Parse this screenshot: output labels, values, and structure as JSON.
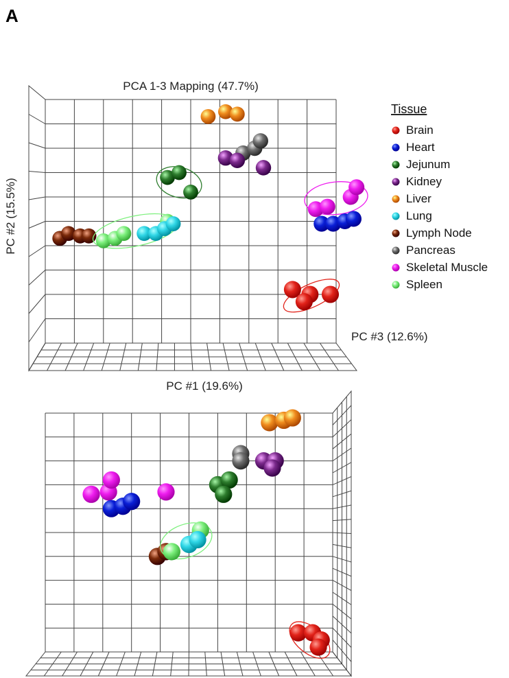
{
  "panel_label": "A",
  "legend": {
    "title": "Tissue",
    "items": [
      {
        "label": "Brain",
        "color": "#e2231a"
      },
      {
        "label": "Heart",
        "color": "#0a1fd6"
      },
      {
        "label": "Jejunum",
        "color": "#2e7d2e"
      },
      {
        "label": "Kidney",
        "color": "#7b2a8c"
      },
      {
        "label": "Liver",
        "color": "#f08c1e"
      },
      {
        "label": "Lung",
        "color": "#30d6e6"
      },
      {
        "label": "Lymph Node",
        "color": "#7a2a0a"
      },
      {
        "label": "Pancreas",
        "color": "#6e6e6e"
      },
      {
        "label": "Skeletal Muscle",
        "color": "#ee1cee"
      },
      {
        "label": "Spleen",
        "color": "#7df07d"
      }
    ]
  },
  "chart_data": [
    {
      "type": "scatter",
      "projection": "3d",
      "title": "PCA 1-3 Mapping (47.7%)",
      "xlabel": "PC #1 (19.6%)",
      "ylabel": "PC #2 (15.5%)",
      "zlabel": "PC #3 (12.6%)",
      "grid": true,
      "legend_position": "right",
      "series": [
        {
          "name": "Liver",
          "points": [
            [
              0.56,
              0.93,
              0.3
            ],
            [
              0.62,
              0.95,
              0.3
            ],
            [
              0.66,
              0.94,
              0.3
            ]
          ]
        },
        {
          "name": "Pancreas",
          "points": [
            [
              0.68,
              0.78,
              0.4
            ],
            [
              0.72,
              0.8,
              0.4
            ],
            [
              0.74,
              0.83,
              0.4
            ]
          ]
        },
        {
          "name": "Kidney",
          "points": [
            [
              0.62,
              0.76,
              0.4
            ],
            [
              0.66,
              0.75,
              0.4
            ],
            [
              0.75,
              0.72,
              0.4
            ]
          ]
        },
        {
          "name": "Jejunum",
          "points": [
            [
              0.42,
              0.68,
              0.3
            ],
            [
              0.46,
              0.7,
              0.3
            ],
            [
              0.5,
              0.62,
              0.3
            ]
          ]
        },
        {
          "name": "Skeletal Muscle",
          "points": [
            [
              0.93,
              0.55,
              0.5
            ],
            [
              0.97,
              0.56,
              0.5
            ],
            [
              1.05,
              0.6,
              0.5
            ],
            [
              1.07,
              0.64,
              0.5
            ]
          ]
        },
        {
          "name": "Heart",
          "points": [
            [
              0.95,
              0.49,
              0.5
            ],
            [
              0.99,
              0.49,
              0.5
            ],
            [
              1.03,
              0.5,
              0.5
            ],
            [
              1.06,
              0.51,
              0.5
            ]
          ]
        },
        {
          "name": "Lymph Node",
          "points": [
            [
              0.05,
              0.43,
              0.3
            ],
            [
              0.08,
              0.45,
              0.3
            ],
            [
              0.12,
              0.44,
              0.3
            ],
            [
              0.15,
              0.44,
              0.3
            ]
          ]
        },
        {
          "name": "Spleen",
          "points": [
            [
              0.2,
              0.42,
              0.3
            ],
            [
              0.24,
              0.43,
              0.3
            ],
            [
              0.27,
              0.45,
              0.3
            ],
            [
              0.42,
              0.5,
              0.3
            ]
          ]
        },
        {
          "name": "Lung",
          "points": [
            [
              0.34,
              0.45,
              0.3
            ],
            [
              0.38,
              0.45,
              0.3
            ],
            [
              0.41,
              0.47,
              0.3
            ],
            [
              0.44,
              0.49,
              0.3
            ]
          ]
        },
        {
          "name": "Brain",
          "points": [
            [
              0.85,
              0.22,
              0.8
            ],
            [
              0.91,
              0.2,
              0.8
            ],
            [
              0.89,
              0.17,
              0.8
            ],
            [
              0.98,
              0.2,
              0.8
            ]
          ]
        }
      ]
    },
    {
      "type": "scatter",
      "projection": "3d",
      "title": "",
      "grid": true,
      "series": [
        {
          "name": "Liver",
          "points": [
            [
              0.78,
              0.96,
              0.5
            ],
            [
              0.83,
              0.97,
              0.5
            ],
            [
              0.86,
              0.98,
              0.5
            ]
          ]
        },
        {
          "name": "Pancreas",
          "points": [
            [
              0.68,
              0.83,
              0.5
            ],
            [
              0.68,
              0.8,
              0.5
            ]
          ]
        },
        {
          "name": "Kidney",
          "points": [
            [
              0.76,
              0.8,
              0.5
            ],
            [
              0.8,
              0.8,
              0.5
            ],
            [
              0.79,
              0.77,
              0.5
            ]
          ]
        },
        {
          "name": "Jejunum",
          "points": [
            [
              0.6,
              0.7,
              0.5
            ],
            [
              0.64,
              0.72,
              0.5
            ],
            [
              0.62,
              0.66,
              0.5
            ]
          ]
        },
        {
          "name": "Skeletal Muscle",
          "points": [
            [
              0.16,
              0.66,
              0.5
            ],
            [
              0.22,
              0.67,
              0.5
            ],
            [
              0.23,
              0.72,
              0.5
            ],
            [
              0.42,
              0.67,
              0.5
            ]
          ]
        },
        {
          "name": "Heart",
          "points": [
            [
              0.23,
              0.6,
              0.5
            ],
            [
              0.27,
              0.61,
              0.5
            ],
            [
              0.3,
              0.63,
              0.5
            ]
          ]
        },
        {
          "name": "Lymph Node",
          "points": [
            [
              0.39,
              0.4,
              0.5
            ],
            [
              0.42,
              0.42,
              0.5
            ]
          ]
        },
        {
          "name": "Spleen",
          "points": [
            [
              0.44,
              0.42,
              0.5
            ],
            [
              0.54,
              0.51,
              0.5
            ]
          ]
        },
        {
          "name": "Lung",
          "points": [
            [
              0.5,
              0.45,
              0.5
            ],
            [
              0.53,
              0.47,
              0.5
            ]
          ]
        },
        {
          "name": "Brain",
          "points": [
            [
              0.88,
              0.08,
              0.5
            ],
            [
              0.93,
              0.08,
              0.5
            ],
            [
              0.96,
              0.05,
              0.5
            ],
            [
              0.95,
              0.02,
              0.5
            ]
          ]
        }
      ]
    }
  ]
}
